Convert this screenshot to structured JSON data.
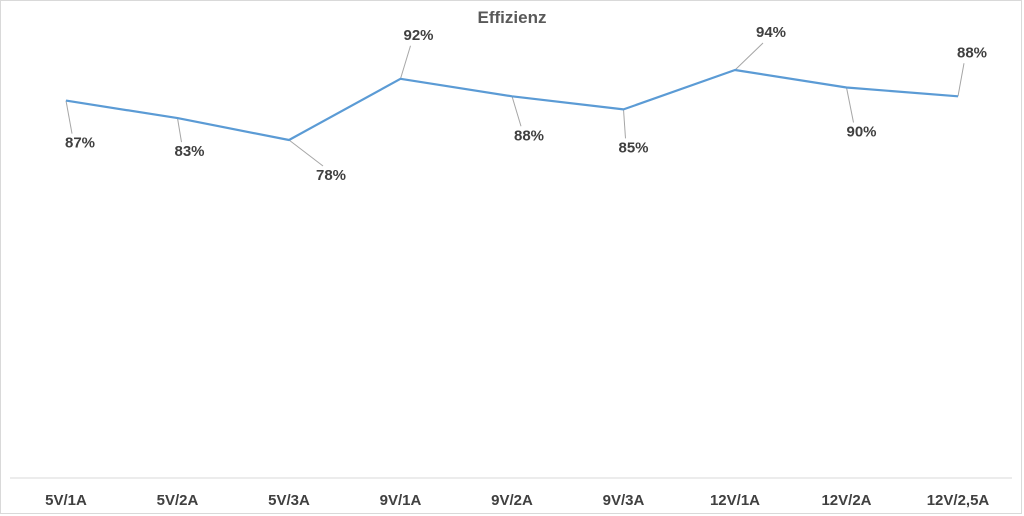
{
  "chart_data": {
    "type": "line",
    "title": "Effizienz",
    "xlabel": "",
    "ylabel": "",
    "categories": [
      "5V/1A",
      "5V/2A",
      "5V/3A",
      "9V/1A",
      "9V/2A",
      "9V/3A",
      "12V/1A",
      "12V/2A",
      "12V/2,5A"
    ],
    "series": [
      {
        "values": [
          87,
          83,
          78,
          92,
          88,
          85,
          94,
          90,
          88
        ],
        "labels": [
          "87%",
          "83%",
          "78%",
          "92%",
          "88%",
          "85%",
          "94%",
          "90%",
          "88%"
        ],
        "color": "#5b9bd5"
      }
    ],
    "grid": false,
    "legend": "none"
  }
}
